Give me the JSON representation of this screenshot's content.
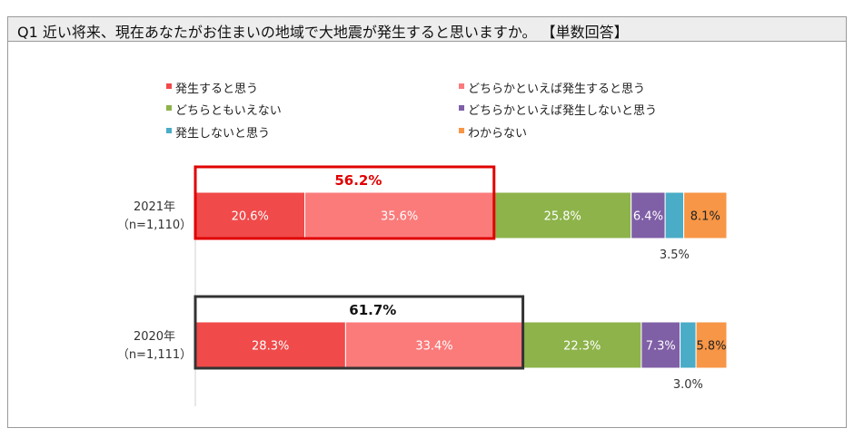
{
  "header": {
    "title": "Q1  近い将来、現在あなたがお住まいの地域で大地震が発生すると思いますか。 【単数回答】"
  },
  "chart_data": {
    "type": "bar",
    "stacked": true,
    "orientation": "horizontal",
    "title": "Q1  近い将来、現在あなたがお住まいの地域で大地震が発生すると思いますか。 【単数回答】",
    "categories": [
      {
        "year": "2021年",
        "n": "（n=1,110）"
      },
      {
        "year": "2020年",
        "n": "（n=1,111）"
      }
    ],
    "series": [
      {
        "name": "発生すると思う",
        "color": "#f04a4a",
        "values": [
          20.6,
          28.3
        ],
        "labels": [
          "20.6%",
          "28.3%"
        ]
      },
      {
        "name": "どちらかといえば発生すると思う",
        "color": "#fb7b7b",
        "values": [
          35.6,
          33.4
        ],
        "labels": [
          "35.6%",
          "33.4%"
        ]
      },
      {
        "name": "どちらともいえない",
        "color": "#8db34a",
        "values": [
          25.8,
          22.3
        ],
        "labels": [
          "25.8%",
          "22.3%"
        ]
      },
      {
        "name": "どちらかといえば発生しないと思う",
        "color": "#7f5fa6",
        "values": [
          6.4,
          7.3
        ],
        "labels": [
          "6.4%",
          "7.3%"
        ]
      },
      {
        "name": "発生しないと思う",
        "color": "#4aacc6",
        "values": [
          3.5,
          3.0
        ],
        "labels": [
          "3.5%",
          "3.0%"
        ]
      },
      {
        "name": "わからない",
        "color": "#f79646",
        "values": [
          8.1,
          5.8
        ],
        "labels": [
          "8.1%",
          "5.8%"
        ]
      }
    ],
    "annotations": [
      {
        "label": "56.2%",
        "color": "#e00000",
        "border": "#e00000"
      },
      {
        "label": "61.7%",
        "color": "#111111",
        "border": "#333333"
      }
    ],
    "xlim": [
      0,
      100
    ],
    "legend": "top"
  }
}
